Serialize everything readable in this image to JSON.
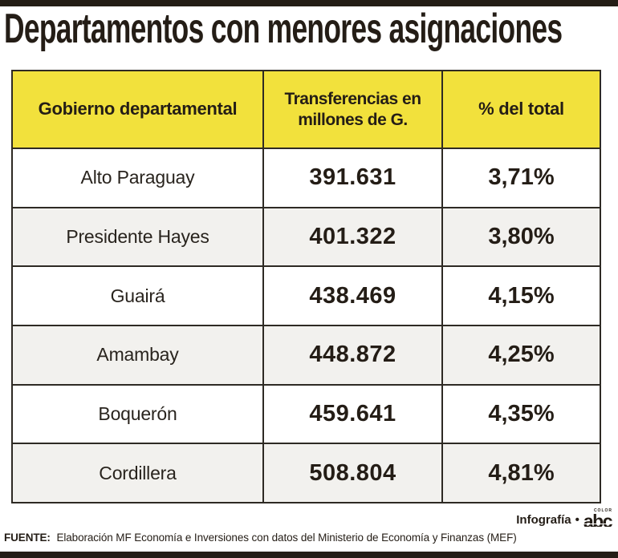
{
  "title": "Departamentos con menores asignaciones",
  "colors": {
    "header_yellow": "#F2E13C",
    "bar_black": "#241D16",
    "row_alt_gray": "#F2F1EE",
    "border_dark": "#2E2A24"
  },
  "table": {
    "headers": {
      "department": "Gobierno departamental",
      "transfers": "Transferencias en millones de G.",
      "percent": "% del total"
    },
    "rows": [
      {
        "department": "Alto Paraguay",
        "transfers": "391.631",
        "percent": "3,71%"
      },
      {
        "department": "Presidente Hayes",
        "transfers": "401.322",
        "percent": "3,80%"
      },
      {
        "department": "Guairá",
        "transfers": "438.469",
        "percent": "4,15%"
      },
      {
        "department": "Amambay",
        "transfers": "448.872",
        "percent": "4,25%"
      },
      {
        "department": "Boquerón",
        "transfers": "459.641",
        "percent": "4,35%"
      },
      {
        "department": "Cordillera",
        "transfers": "508.804",
        "percent": "4,81%"
      }
    ]
  },
  "chart_data": {
    "type": "table",
    "title": "Departamentos con menores asignaciones",
    "columns": [
      "Gobierno departamental",
      "Transferencias en millones de G.",
      "% del total"
    ],
    "rows": [
      [
        "Alto Paraguay",
        391631,
        3.71
      ],
      [
        "Presidente Hayes",
        401322,
        3.8
      ],
      [
        "Guairá",
        438469,
        4.15
      ],
      [
        "Amambay",
        448872,
        4.25
      ],
      [
        "Boquerón",
        459641,
        4.35
      ],
      [
        "Cordillera",
        508804,
        4.81
      ]
    ]
  },
  "footer": {
    "credit": "Infografía",
    "bullet": "•",
    "logo_text": "abc",
    "logo_super": "COLOR",
    "source_label": "FUENTE:",
    "source_text": "Elaboración MF Economía e Inversiones con datos del Ministerio de Economía y Finanzas (MEF)"
  }
}
